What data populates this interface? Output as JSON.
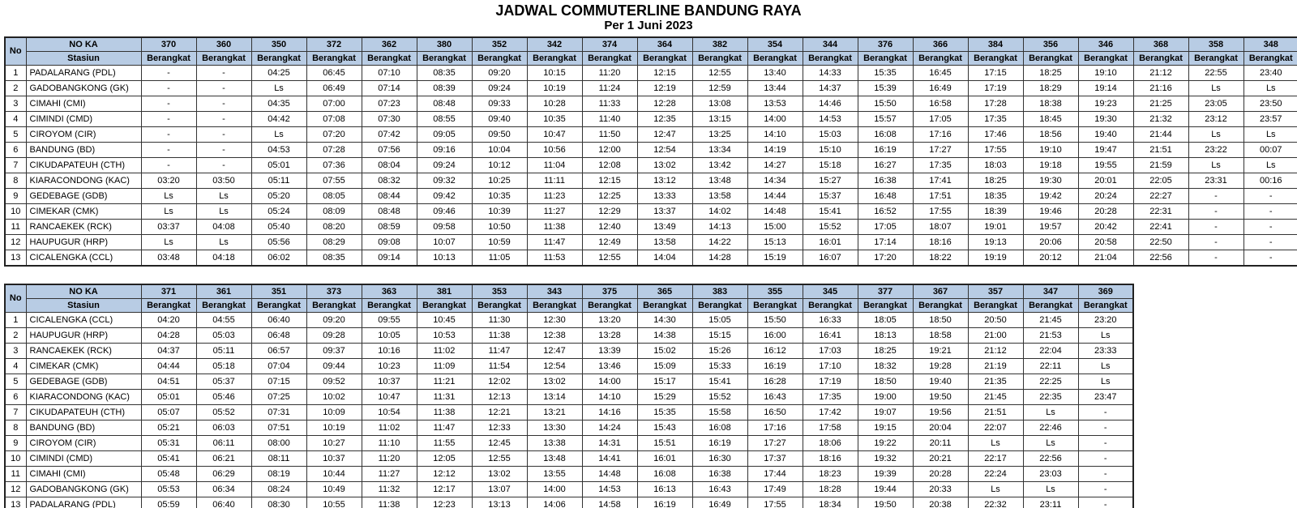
{
  "title": "JADWAL COMMUTERLINE BANDUNG RAYA",
  "subtitle": "Per 1 Juni 2023",
  "colors": {
    "header_bg": "#B8CCE4",
    "border": "#333333",
    "text": "#000000"
  },
  "header_labels": {
    "no": "No",
    "no_ka": "NO KA",
    "stasiun": "Stasiun",
    "berangkat": "Berangkat"
  },
  "tables": [
    {
      "name": "schedule-table-eastbound",
      "trains": [
        "370",
        "360",
        "350",
        "372",
        "362",
        "380",
        "352",
        "342",
        "374",
        "364",
        "382",
        "354",
        "344",
        "376",
        "366",
        "384",
        "356",
        "346",
        "368",
        "358",
        "348"
      ],
      "rows": [
        {
          "no": "1",
          "station": "PADALARANG (PDL)",
          "times": [
            "-",
            "-",
            "04:25",
            "06:45",
            "07:10",
            "08:35",
            "09:20",
            "10:15",
            "11:20",
            "12:15",
            "12:55",
            "13:40",
            "14:33",
            "15:35",
            "16:45",
            "17:15",
            "18:25",
            "19:10",
            "21:12",
            "22:55",
            "23:40"
          ]
        },
        {
          "no": "2",
          "station": "GADOBANGKONG (GK)",
          "times": [
            "-",
            "-",
            "Ls",
            "06:49",
            "07:14",
            "08:39",
            "09:24",
            "10:19",
            "11:24",
            "12:19",
            "12:59",
            "13:44",
            "14:37",
            "15:39",
            "16:49",
            "17:19",
            "18:29",
            "19:14",
            "21:16",
            "Ls",
            "Ls"
          ]
        },
        {
          "no": "3",
          "station": "CIMAHI (CMI)",
          "times": [
            "-",
            "-",
            "04:35",
            "07:00",
            "07:23",
            "08:48",
            "09:33",
            "10:28",
            "11:33",
            "12:28",
            "13:08",
            "13:53",
            "14:46",
            "15:50",
            "16:58",
            "17:28",
            "18:38",
            "19:23",
            "21:25",
            "23:05",
            "23:50"
          ]
        },
        {
          "no": "4",
          "station": "CIMINDI (CMD)",
          "times": [
            "-",
            "-",
            "04:42",
            "07:08",
            "07:30",
            "08:55",
            "09:40",
            "10:35",
            "11:40",
            "12:35",
            "13:15",
            "14:00",
            "14:53",
            "15:57",
            "17:05",
            "17:35",
            "18:45",
            "19:30",
            "21:32",
            "23:12",
            "23:57"
          ]
        },
        {
          "no": "5",
          "station": "CIROYOM (CIR)",
          "times": [
            "-",
            "-",
            "Ls",
            "07:20",
            "07:42",
            "09:05",
            "09:50",
            "10:47",
            "11:50",
            "12:47",
            "13:25",
            "14:10",
            "15:03",
            "16:08",
            "17:16",
            "17:46",
            "18:56",
            "19:40",
            "21:44",
            "Ls",
            "Ls"
          ]
        },
        {
          "no": "6",
          "station": "BANDUNG (BD)",
          "times": [
            "-",
            "-",
            "04:53",
            "07:28",
            "07:56",
            "09:16",
            "10:04",
            "10:56",
            "12:00",
            "12:54",
            "13:34",
            "14:19",
            "15:10",
            "16:19",
            "17:27",
            "17:55",
            "19:10",
            "19:47",
            "21:51",
            "23:22",
            "00:07"
          ]
        },
        {
          "no": "7",
          "station": "CIKUDAPATEUH (CTH)",
          "times": [
            "-",
            "-",
            "05:01",
            "07:36",
            "08:04",
            "09:24",
            "10:12",
            "11:04",
            "12:08",
            "13:02",
            "13:42",
            "14:27",
            "15:18",
            "16:27",
            "17:35",
            "18:03",
            "19:18",
            "19:55",
            "21:59",
            "Ls",
            "Ls"
          ]
        },
        {
          "no": "8",
          "station": "KIARACONDONG (KAC)",
          "times": [
            "03:20",
            "03:50",
            "05:11",
            "07:55",
            "08:32",
            "09:32",
            "10:25",
            "11:11",
            "12:15",
            "13:12",
            "13:48",
            "14:34",
            "15:27",
            "16:38",
            "17:41",
            "18:25",
            "19:30",
            "20:01",
            "22:05",
            "23:31",
            "00:16"
          ]
        },
        {
          "no": "9",
          "station": "GEDEBAGE (GDB)",
          "times": [
            "Ls",
            "Ls",
            "05:20",
            "08:05",
            "08:44",
            "09:42",
            "10:35",
            "11:23",
            "12:25",
            "13:33",
            "13:58",
            "14:44",
            "15:37",
            "16:48",
            "17:51",
            "18:35",
            "19:42",
            "20:24",
            "22:27",
            "-",
            "-"
          ]
        },
        {
          "no": "10",
          "station": "CIMEKAR (CMK)",
          "times": [
            "Ls",
            "Ls",
            "05:24",
            "08:09",
            "08:48",
            "09:46",
            "10:39",
            "11:27",
            "12:29",
            "13:37",
            "14:02",
            "14:48",
            "15:41",
            "16:52",
            "17:55",
            "18:39",
            "19:46",
            "20:28",
            "22:31",
            "-",
            "-"
          ]
        },
        {
          "no": "11",
          "station": "RANCAEKEK (RCK)",
          "times": [
            "03:37",
            "04:08",
            "05:40",
            "08:20",
            "08:59",
            "09:58",
            "10:50",
            "11:38",
            "12:40",
            "13:49",
            "14:13",
            "15:00",
            "15:52",
            "17:05",
            "18:07",
            "19:01",
            "19:57",
            "20:42",
            "22:41",
            "-",
            "-"
          ]
        },
        {
          "no": "12",
          "station": "HAUPUGUR (HRP)",
          "times": [
            "Ls",
            "Ls",
            "05:56",
            "08:29",
            "09:08",
            "10:07",
            "10:59",
            "11:47",
            "12:49",
            "13:58",
            "14:22",
            "15:13",
            "16:01",
            "17:14",
            "18:16",
            "19:13",
            "20:06",
            "20:58",
            "22:50",
            "-",
            "-"
          ]
        },
        {
          "no": "13",
          "station": "CICALENGKA (CCL)",
          "times": [
            "03:48",
            "04:18",
            "06:02",
            "08:35",
            "09:14",
            "10:13",
            "11:05",
            "11:53",
            "12:55",
            "14:04",
            "14:28",
            "15:19",
            "16:07",
            "17:20",
            "18:22",
            "19:19",
            "20:12",
            "21:04",
            "22:56",
            "-",
            "-"
          ]
        }
      ]
    },
    {
      "name": "schedule-table-westbound",
      "trains": [
        "371",
        "361",
        "351",
        "373",
        "363",
        "381",
        "353",
        "343",
        "375",
        "365",
        "383",
        "355",
        "345",
        "377",
        "367",
        "357",
        "347",
        "369"
      ],
      "rows": [
        {
          "no": "1",
          "station": "CICALENGKA (CCL)",
          "times": [
            "04:20",
            "04:55",
            "06:40",
            "09:20",
            "09:55",
            "10:45",
            "11:30",
            "12:30",
            "13:20",
            "14:30",
            "15:05",
            "15:50",
            "16:33",
            "18:05",
            "18:50",
            "20:50",
            "21:45",
            "23:20"
          ]
        },
        {
          "no": "2",
          "station": "HAUPUGUR (HRP)",
          "times": [
            "04:28",
            "05:03",
            "06:48",
            "09:28",
            "10:05",
            "10:53",
            "11:38",
            "12:38",
            "13:28",
            "14:38",
            "15:15",
            "16:00",
            "16:41",
            "18:13",
            "18:58",
            "21:00",
            "21:53",
            "Ls"
          ]
        },
        {
          "no": "3",
          "station": "RANCAEKEK (RCK)",
          "times": [
            "04:37",
            "05:11",
            "06:57",
            "09:37",
            "10:16",
            "11:02",
            "11:47",
            "12:47",
            "13:39",
            "15:02",
            "15:26",
            "16:12",
            "17:03",
            "18:25",
            "19:21",
            "21:12",
            "22:04",
            "23:33"
          ]
        },
        {
          "no": "4",
          "station": "CIMEKAR (CMK)",
          "times": [
            "04:44",
            "05:18",
            "07:04",
            "09:44",
            "10:23",
            "11:09",
            "11:54",
            "12:54",
            "13:46",
            "15:09",
            "15:33",
            "16:19",
            "17:10",
            "18:32",
            "19:28",
            "21:19",
            "22:11",
            "Ls"
          ]
        },
        {
          "no": "5",
          "station": "GEDEBAGE (GDB)",
          "times": [
            "04:51",
            "05:37",
            "07:15",
            "09:52",
            "10:37",
            "11:21",
            "12:02",
            "13:02",
            "14:00",
            "15:17",
            "15:41",
            "16:28",
            "17:19",
            "18:50",
            "19:40",
            "21:35",
            "22:25",
            "Ls"
          ]
        },
        {
          "no": "6",
          "station": "KIARACONDONG (KAC)",
          "times": [
            "05:01",
            "05:46",
            "07:25",
            "10:02",
            "10:47",
            "11:31",
            "12:13",
            "13:14",
            "14:10",
            "15:29",
            "15:52",
            "16:43",
            "17:35",
            "19:00",
            "19:50",
            "21:45",
            "22:35",
            "23:47"
          ]
        },
        {
          "no": "7",
          "station": "CIKUDAPATEUH (CTH)",
          "times": [
            "05:07",
            "05:52",
            "07:31",
            "10:09",
            "10:54",
            "11:38",
            "12:21",
            "13:21",
            "14:16",
            "15:35",
            "15:58",
            "16:50",
            "17:42",
            "19:07",
            "19:56",
            "21:51",
            "Ls",
            "-"
          ]
        },
        {
          "no": "8",
          "station": "BANDUNG (BD)",
          "times": [
            "05:21",
            "06:03",
            "07:51",
            "10:19",
            "11:02",
            "11:47",
            "12:33",
            "13:30",
            "14:24",
            "15:43",
            "16:08",
            "17:16",
            "17:58",
            "19:15",
            "20:04",
            "22:07",
            "22:46",
            "-"
          ]
        },
        {
          "no": "9",
          "station": "CIROYOM (CIR)",
          "times": [
            "05:31",
            "06:11",
            "08:00",
            "10:27",
            "11:10",
            "11:55",
            "12:45",
            "13:38",
            "14:31",
            "15:51",
            "16:19",
            "17:27",
            "18:06",
            "19:22",
            "20:11",
            "Ls",
            "Ls",
            "-"
          ]
        },
        {
          "no": "10",
          "station": "CIMINDI (CMD)",
          "times": [
            "05:41",
            "06:21",
            "08:11",
            "10:37",
            "11:20",
            "12:05",
            "12:55",
            "13:48",
            "14:41",
            "16:01",
            "16:30",
            "17:37",
            "18:16",
            "19:32",
            "20:21",
            "22:17",
            "22:56",
            "-"
          ]
        },
        {
          "no": "11",
          "station": "CIMAHI (CMI)",
          "times": [
            "05:48",
            "06:29",
            "08:19",
            "10:44",
            "11:27",
            "12:12",
            "13:02",
            "13:55",
            "14:48",
            "16:08",
            "16:38",
            "17:44",
            "18:23",
            "19:39",
            "20:28",
            "22:24",
            "23:03",
            "-"
          ]
        },
        {
          "no": "12",
          "station": "GADOBANGKONG (GK)",
          "times": [
            "05:53",
            "06:34",
            "08:24",
            "10:49",
            "11:32",
            "12:17",
            "13:07",
            "14:00",
            "14:53",
            "16:13",
            "16:43",
            "17:49",
            "18:28",
            "19:44",
            "20:33",
            "Ls",
            "Ls",
            "-"
          ]
        },
        {
          "no": "13",
          "station": "PADALARANG (PDL)",
          "times": [
            "05:59",
            "06:40",
            "08:30",
            "10:55",
            "11:38",
            "12:23",
            "13:13",
            "14:06",
            "14:58",
            "16:19",
            "16:49",
            "17:55",
            "18:34",
            "19:50",
            "20:38",
            "22:32",
            "23:11",
            "-"
          ]
        }
      ]
    }
  ]
}
